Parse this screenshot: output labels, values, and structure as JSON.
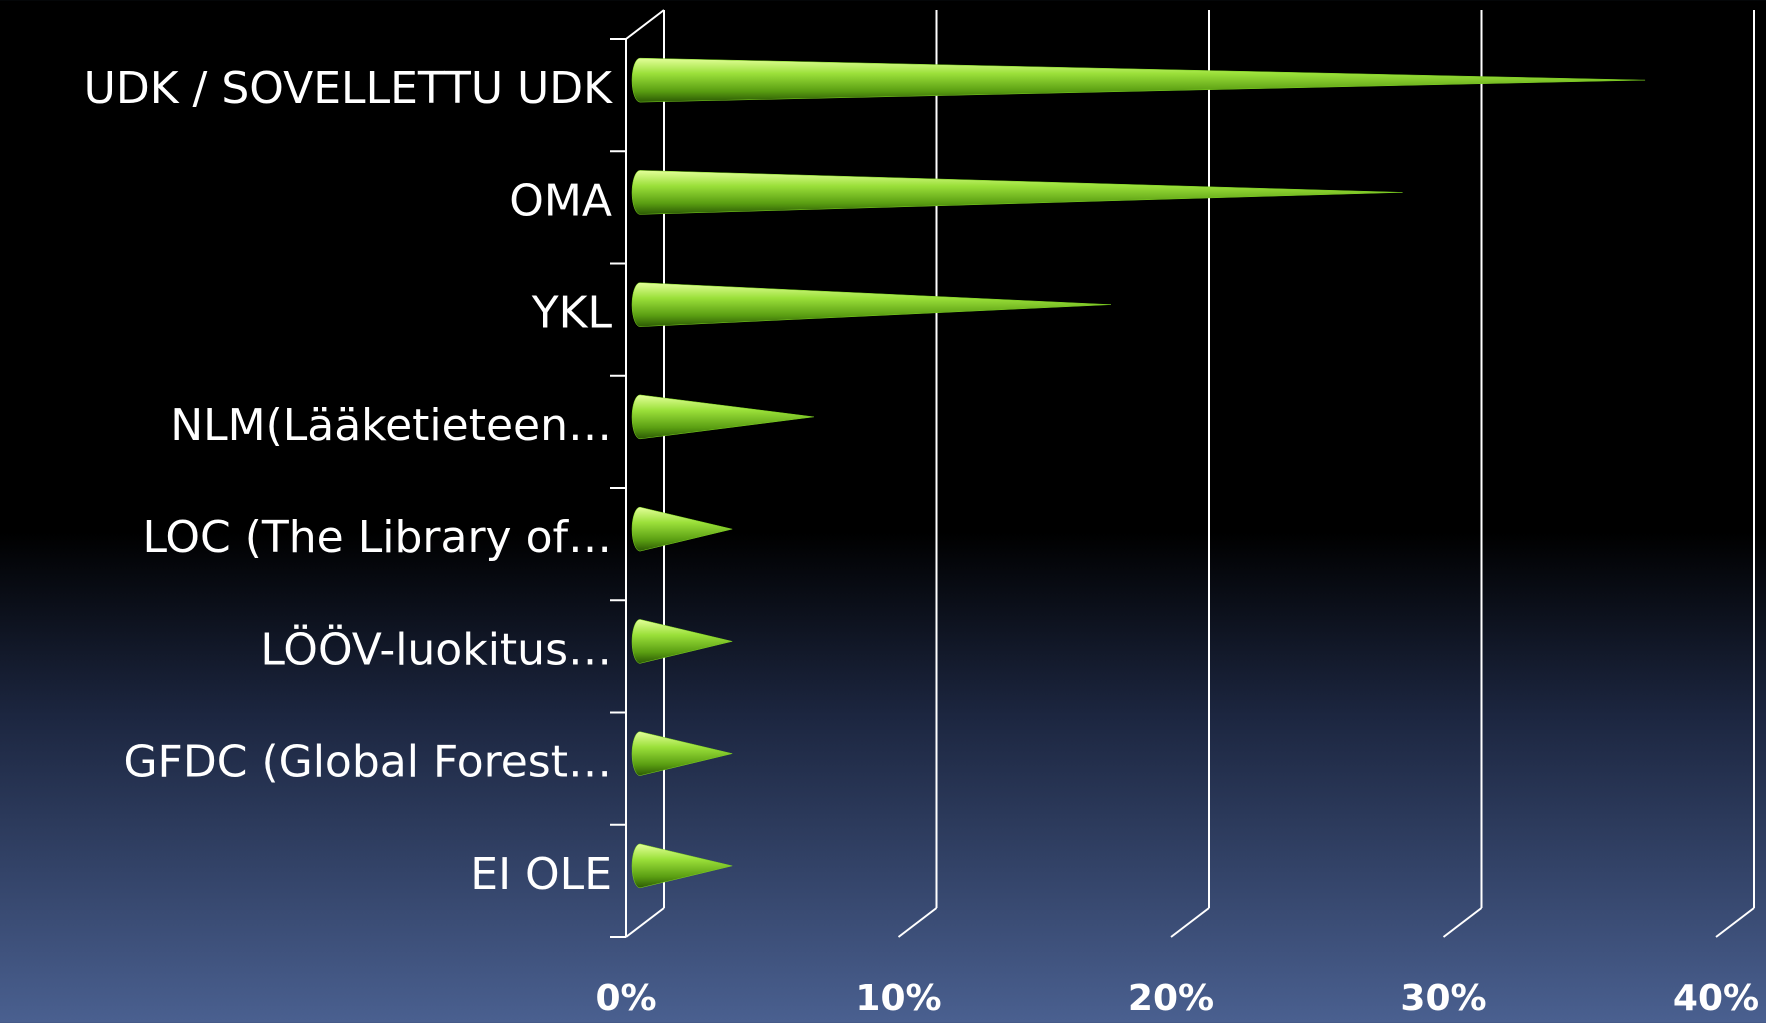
{
  "chart_data": {
    "type": "bar",
    "orientation": "horizontal",
    "categories": [
      "UDK / SOVELLETTU UDK",
      "OMA",
      "YKL",
      "NLM(Lääketieteen…",
      "LOC (The Library of…",
      "LÖÖV-luokitus…",
      "GFDC (Global Forest…",
      "EI OLE"
    ],
    "values": [
      36.7,
      27.8,
      17.1,
      6.2,
      3.2,
      3.2,
      3.2,
      3.2
    ],
    "color": "#7dd321",
    "xlim": [
      0,
      40
    ],
    "xticks": [
      {
        "value": 0,
        "label": "0%"
      },
      {
        "value": 10,
        "label": "10%"
      },
      {
        "value": 20,
        "label": "20%"
      },
      {
        "value": 30,
        "label": "30%"
      },
      {
        "value": 40,
        "label": "40%"
      }
    ],
    "grid": true
  }
}
